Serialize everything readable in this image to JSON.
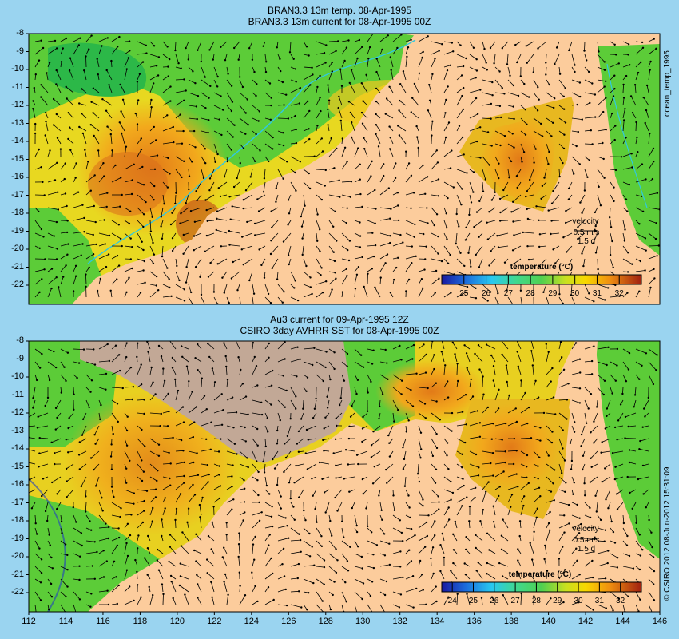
{
  "panels": [
    {
      "title1": "BRAN3.3 13m temp. 08-Apr-1995",
      "title2": "BRAN3.3 13m current for 08-Apr-1995 00Z",
      "side_label": "ocean_temp_1995",
      "velocity_label": "velocity",
      "velocity_scale": "0.5 m/s",
      "velocity_time": "1.5 d",
      "colorbar_title": "temperature (°C)",
      "colorbar_ticks": [
        "25",
        "26",
        "27",
        "28",
        "29",
        "30",
        "31",
        "32"
      ]
    },
    {
      "title1": "Au3 current for 09-Apr-1995 12Z",
      "title2": "CSIRO 3day AVHRR SST for 08-Apr-1995 00Z",
      "side_label": "© CSIRO 2012   08-Jun-2012 15:31:09",
      "velocity_label": "velocity",
      "velocity_scale": "0.5 m/s",
      "velocity_time": "1.5 d",
      "colorbar_title": "temperature (°C)",
      "colorbar_ticks": [
        "24",
        "25",
        "26",
        "27",
        "28",
        "29",
        "30",
        "31",
        "32"
      ]
    }
  ],
  "y_ticks": [
    "-8",
    "-9",
    "-10",
    "-11",
    "-12",
    "-13",
    "-14",
    "-15",
    "-16",
    "-17",
    "-18",
    "-19",
    "-20",
    "-21",
    "-22"
  ],
  "x_ticks": [
    "112",
    "114",
    "116",
    "118",
    "120",
    "122",
    "124",
    "126",
    "128",
    "130",
    "132",
    "134",
    "136",
    "138",
    "140",
    "142",
    "144",
    "146"
  ],
  "colors": {
    "land": "#fccc9c",
    "outside": "#9ad4f0",
    "shelf_grey": "#c2a896"
  }
}
